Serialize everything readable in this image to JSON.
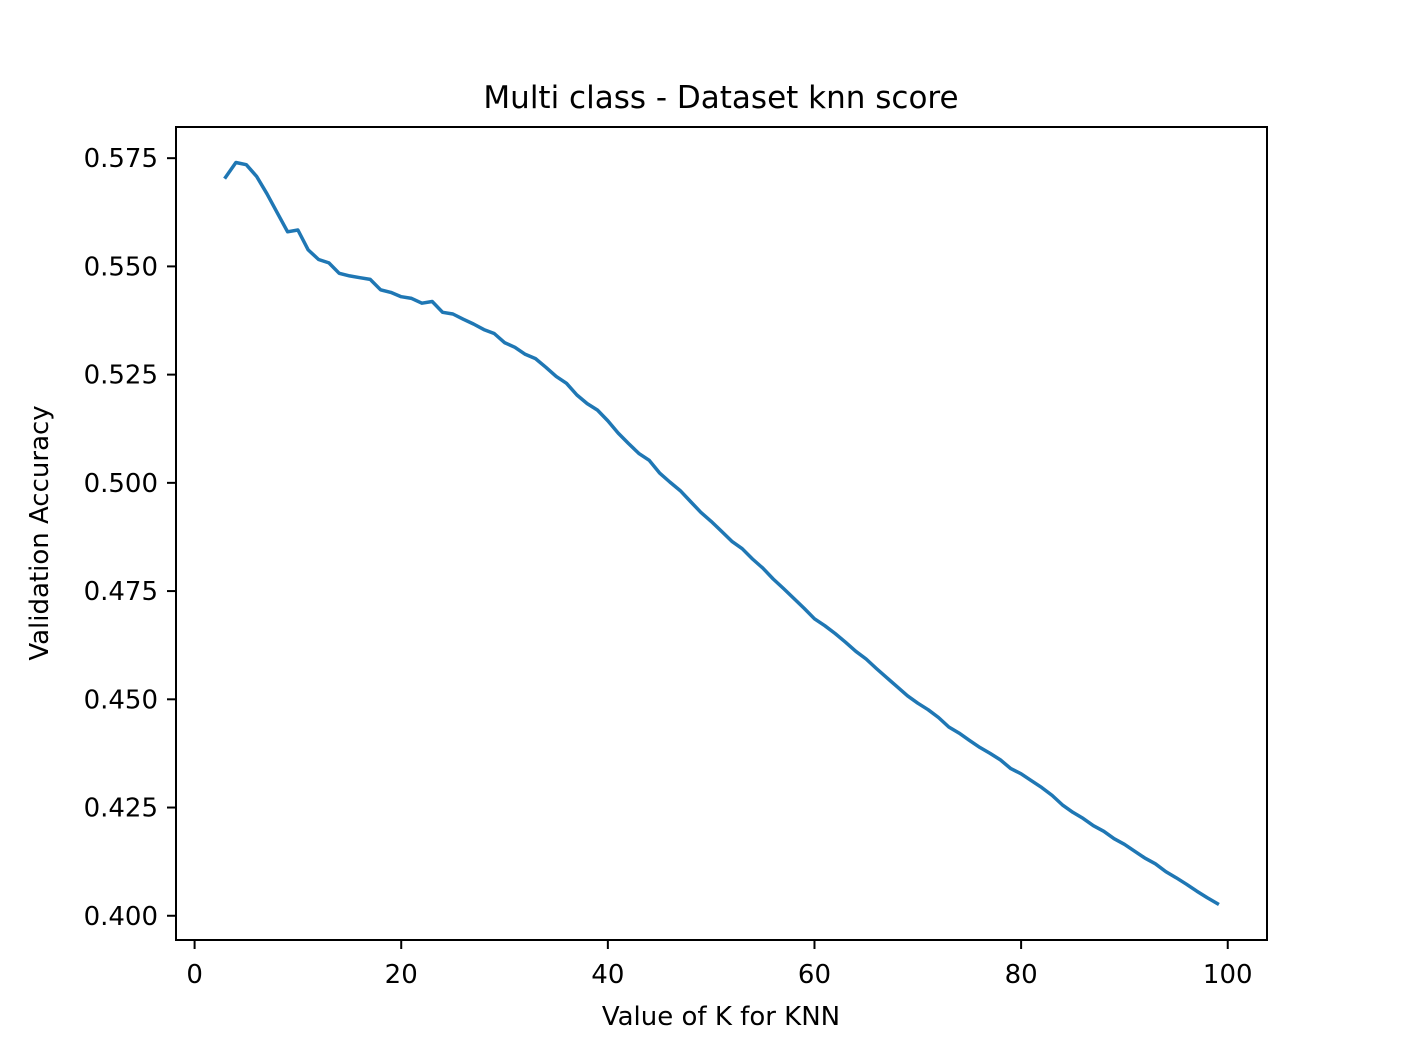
{
  "chart_data": {
    "type": "line",
    "title": "Multi class - Dataset knn score",
    "xlabel": "Value of K for KNN",
    "ylabel": "Validation Accuracy",
    "xlim": [
      -1.8,
      103.8
    ],
    "ylim": [
      0.3944,
      0.5822
    ],
    "xticks": [
      0,
      20,
      40,
      60,
      80,
      100
    ],
    "xtick_labels": [
      "0",
      "20",
      "40",
      "60",
      "80",
      "100"
    ],
    "yticks": [
      0.4,
      0.425,
      0.45,
      0.475,
      0.5,
      0.525,
      0.55,
      0.575
    ],
    "ytick_labels": [
      "0.400",
      "0.425",
      "0.450",
      "0.475",
      "0.500",
      "0.525",
      "0.550",
      "0.575"
    ],
    "grid": false,
    "series": [
      {
        "color": "#1f77b4",
        "x": [
          3,
          4,
          5,
          6,
          7,
          8,
          9,
          10,
          11,
          12,
          13,
          14,
          15,
          16,
          17,
          18,
          19,
          20,
          21,
          22,
          23,
          24,
          25,
          26,
          27,
          28,
          29,
          30,
          31,
          32,
          33,
          34,
          35,
          36,
          37,
          38,
          39,
          40,
          41,
          42,
          43,
          44,
          45,
          46,
          47,
          48,
          49,
          50,
          51,
          52,
          53,
          54,
          55,
          56,
          57,
          58,
          59,
          60,
          61,
          62,
          63,
          64,
          65,
          66,
          67,
          68,
          69,
          70,
          71,
          72,
          73,
          74,
          75,
          76,
          77,
          78,
          79,
          80,
          81,
          82,
          83,
          84,
          85,
          86,
          87,
          88,
          89,
          90,
          91,
          92,
          93,
          94,
          95,
          96,
          97,
          98,
          99
        ],
        "values": [
          0.5706,
          0.574,
          0.5735,
          0.5708,
          0.5668,
          0.5624,
          0.558,
          0.5584,
          0.5538,
          0.5516,
          0.5508,
          0.5484,
          0.5478,
          0.5474,
          0.547,
          0.5446,
          0.544,
          0.543,
          0.5426,
          0.5415,
          0.5419,
          0.5394,
          0.539,
          0.5378,
          0.5367,
          0.5354,
          0.5345,
          0.5324,
          0.5313,
          0.5297,
          0.5287,
          0.5267,
          0.5246,
          0.523,
          0.5203,
          0.5183,
          0.5168,
          0.5143,
          0.5115,
          0.5091,
          0.5068,
          0.5052,
          0.5023,
          0.5002,
          0.4982,
          0.4957,
          0.4932,
          0.4911,
          0.4888,
          0.4865,
          0.4848,
          0.4824,
          0.4803,
          0.4778,
          0.4756,
          0.4733,
          0.471,
          0.4686,
          0.467,
          0.4652,
          0.4632,
          0.4611,
          0.4593,
          0.4571,
          0.455,
          0.4529,
          0.4508,
          0.4491,
          0.4476,
          0.4458,
          0.4436,
          0.4422,
          0.4405,
          0.4389,
          0.4375,
          0.436,
          0.434,
          0.4328,
          0.4312,
          0.4296,
          0.4278,
          0.4256,
          0.4239,
          0.4225,
          0.4208,
          0.4195,
          0.4178,
          0.4165,
          0.4149,
          0.4133,
          0.412,
          0.4102,
          0.4088,
          0.4073,
          0.4057,
          0.4042,
          0.4028
        ]
      }
    ]
  }
}
